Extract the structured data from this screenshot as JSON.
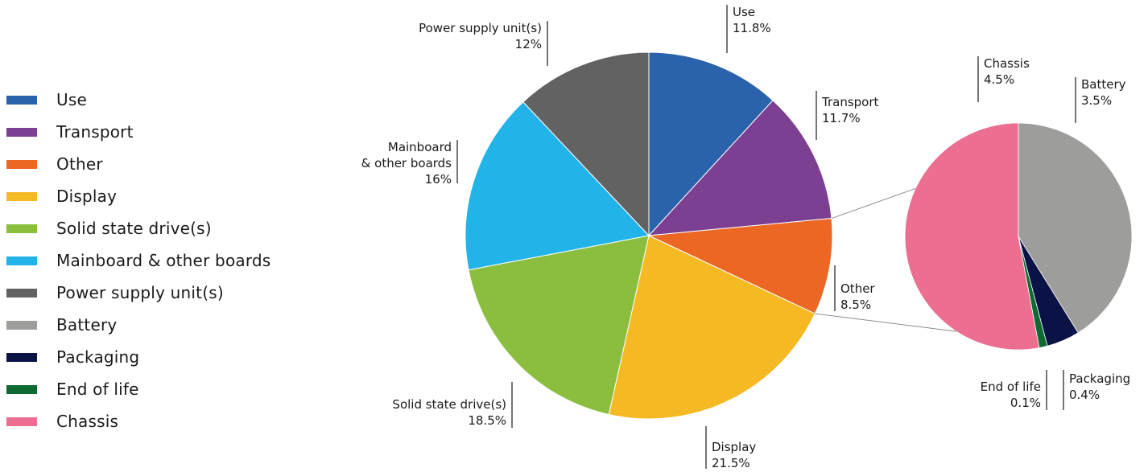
{
  "chart_data": {
    "type": "pie",
    "title": "",
    "main_pie": {
      "slices": [
        {
          "label": "Use",
          "value": 11.8,
          "value_label": "11.8%",
          "color": "#2a62ab"
        },
        {
          "label": "Transport",
          "value": 11.7,
          "value_label": "11.7%",
          "color": "#7d3f91"
        },
        {
          "label": "Other",
          "value": 8.5,
          "value_label": "8.5%",
          "color": "#ec6724"
        },
        {
          "label": "Display",
          "value": 21.5,
          "value_label": "21.5%",
          "color": "#f5b923"
        },
        {
          "label": "Solid state drive(s)",
          "value": 18.5,
          "value_label": "18.5%",
          "color": "#8bbe3e"
        },
        {
          "label": "Mainboard & other boards",
          "label_lines": [
            "Mainboard",
            "& other boards"
          ],
          "value": 16,
          "value_label": "16%",
          "color": "#22b3e9"
        },
        {
          "label": "Power supply unit(s)",
          "value": 12,
          "value_label": "12%",
          "color": "#626262"
        }
      ]
    },
    "breakdown_of": "Other",
    "breakdown_pie": {
      "slices": [
        {
          "label": "Battery",
          "value": 3.5,
          "value_label": "3.5%",
          "color": "#9d9d9c"
        },
        {
          "label": "Packaging",
          "value": 0.4,
          "value_label": "0.4%",
          "color": "#0b1245"
        },
        {
          "label": "End of life",
          "value": 0.1,
          "value_label": "0.1%",
          "color": "#0e6a33"
        },
        {
          "label": "Chassis",
          "value": 4.5,
          "value_label": "4.5%",
          "color": "#ec6e91"
        }
      ]
    },
    "legend": [
      {
        "label": "Use",
        "color": "#2a62ab"
      },
      {
        "label": "Transport",
        "color": "#7d3f91"
      },
      {
        "label": "Other",
        "color": "#ec6724"
      },
      {
        "label": "Display",
        "color": "#f5b923"
      },
      {
        "label": "Solid state drive(s)",
        "color": "#8bbe3e"
      },
      {
        "label": "Mainboard & other boards",
        "color": "#22b3e9"
      },
      {
        "label": "Power supply unit(s)",
        "color": "#626262"
      },
      {
        "label": "Battery",
        "color": "#9d9d9c"
      },
      {
        "label": "Packaging",
        "color": "#0b1245"
      },
      {
        "label": "End of life",
        "color": "#0e6a33"
      },
      {
        "label": "Chassis",
        "color": "#ec6e91"
      }
    ],
    "legend_placement": "left"
  }
}
